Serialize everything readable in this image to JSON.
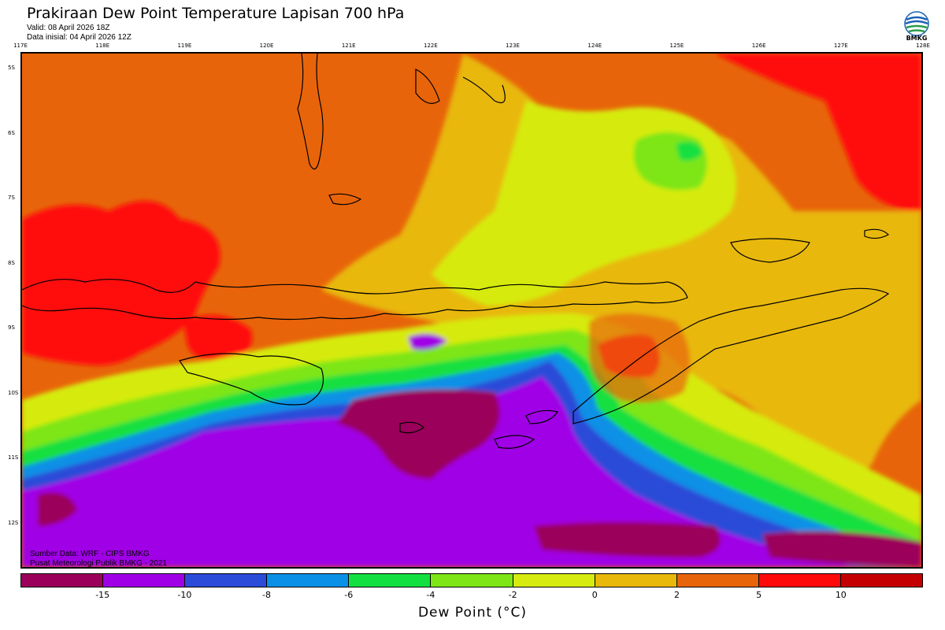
{
  "header": {
    "title": "Prakiraan Dew Point Temperature Lapisan 700 hPa",
    "valid": "Valid: 08 April 2026 18Z",
    "init": "Data inisial: 04 April 2026 12Z",
    "logo_text": "BMKG"
  },
  "map": {
    "lon_labels": [
      "117E",
      "118E",
      "119E",
      "120E",
      "121E",
      "122E",
      "123E",
      "124E",
      "125E",
      "126E",
      "127E",
      "128E"
    ],
    "lat_labels": [
      "5S",
      "6S",
      "7S",
      "8S",
      "9S",
      "10S",
      "11S",
      "12S"
    ],
    "credit_source": "Sumber Data: WRF - CIPS BMKG",
    "credit_org": "Pusat Meteorologi Publik BMKG - 2021"
  },
  "colorbar": {
    "ticks": [
      "-15",
      "-10",
      "-8",
      "-6",
      "-4",
      "-2",
      "0",
      "2",
      "5",
      "10"
    ],
    "colors": [
      "#9b005a",
      "#a000e6",
      "#2c4bd8",
      "#0a90e6",
      "#12e040",
      "#7ee617",
      "#d6eb10",
      "#e8b80a",
      "#e8640a",
      "#ff0a0a",
      "#c40000"
    ],
    "title": "Dew Point (°C)"
  }
}
